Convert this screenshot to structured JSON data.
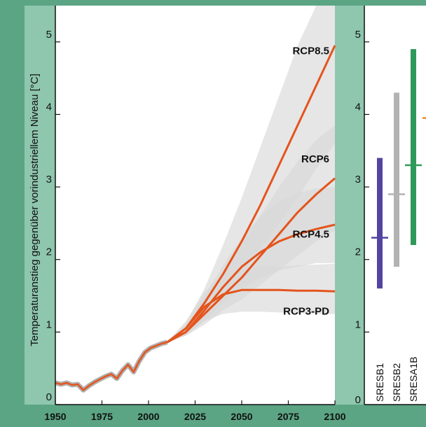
{
  "colors": {
    "page_background": "#5ba584",
    "plot_background": "#ffffff",
    "axis_band": "#8ec6ae",
    "projection_line": "#e4541c",
    "historical_band": "#b0b0b0",
    "uncertainty_band": "#d9d9d9"
  },
  "chart_data": [
    {
      "type": "line",
      "title": "",
      "ylabel": "Temperaturanstieg gegenüber vorindustriellem Niveau [°C]",
      "xlabel": "",
      "xlim": [
        1950,
        2100
      ],
      "ylim": [
        0,
        5.5
      ],
      "x_ticks": [
        "1950",
        "1975",
        "2000",
        "2025",
        "2050",
        "2075",
        "2100"
      ],
      "y_ticks": [
        "0",
        "1",
        "2",
        "3",
        "4",
        "5"
      ],
      "historical": {
        "x": [
          1950,
          1953,
          1956,
          1959,
          1962,
          1965,
          1968,
          1971,
          1974,
          1977,
          1980,
          1983,
          1986,
          1989,
          1992,
          1995,
          1998,
          2001,
          2004,
          2007,
          2010
        ],
        "y": [
          0.3,
          0.28,
          0.3,
          0.27,
          0.28,
          0.2,
          0.26,
          0.31,
          0.35,
          0.39,
          0.42,
          0.36,
          0.47,
          0.55,
          0.45,
          0.6,
          0.72,
          0.78,
          0.81,
          0.84,
          0.86
        ]
      },
      "series": [
        {
          "name": "RCP8.5",
          "x": [
            2010,
            2020,
            2030,
            2040,
            2050,
            2060,
            2070,
            2080,
            2090,
            2100
          ],
          "y": [
            0.86,
            1.05,
            1.4,
            1.8,
            2.25,
            2.75,
            3.3,
            3.85,
            4.4,
            4.95
          ],
          "band_low": [
            0.86,
            0.98,
            1.2,
            1.5,
            1.8,
            2.15,
            2.5,
            2.85,
            3.25,
            3.6
          ],
          "band_high": [
            0.86,
            1.12,
            1.6,
            2.2,
            2.85,
            3.55,
            4.25,
            4.95,
            5.5,
            5.5
          ]
        },
        {
          "name": "RCP6",
          "x": [
            2010,
            2020,
            2030,
            2040,
            2050,
            2060,
            2070,
            2080,
            2090,
            2100
          ],
          "y": [
            0.86,
            1.0,
            1.25,
            1.5,
            1.75,
            2.05,
            2.35,
            2.65,
            2.9,
            3.12
          ],
          "band_low": [
            0.86,
            0.95,
            1.1,
            1.3,
            1.45,
            1.65,
            1.85,
            2.05,
            2.25,
            2.4
          ],
          "band_high": [
            0.86,
            1.05,
            1.45,
            1.8,
            2.2,
            2.6,
            3.0,
            3.35,
            3.65,
            3.85
          ]
        },
        {
          "name": "RCP4.5",
          "x": [
            2010,
            2020,
            2030,
            2040,
            2050,
            2060,
            2070,
            2080,
            2090,
            2100
          ],
          "y": [
            0.86,
            1.0,
            1.3,
            1.62,
            1.9,
            2.1,
            2.25,
            2.35,
            2.42,
            2.48
          ],
          "band_low": [
            0.86,
            0.95,
            1.15,
            1.4,
            1.6,
            1.75,
            1.85,
            1.9,
            1.95,
            1.95
          ],
          "band_high": [
            0.86,
            1.08,
            1.5,
            1.92,
            2.3,
            2.6,
            2.8,
            2.92,
            2.98,
            3.0
          ]
        },
        {
          "name": "RCP3-PD",
          "x": [
            2010,
            2020,
            2030,
            2040,
            2050,
            2060,
            2070,
            2080,
            2090,
            2100
          ],
          "y": [
            0.86,
            1.05,
            1.35,
            1.52,
            1.58,
            1.58,
            1.58,
            1.57,
            1.57,
            1.56
          ],
          "band_low": [
            0.86,
            0.96,
            1.15,
            1.25,
            1.28,
            1.28,
            1.27,
            1.26,
            1.25,
            1.25
          ],
          "band_high": [
            0.86,
            1.15,
            1.55,
            1.8,
            1.88,
            1.9,
            1.9,
            1.92,
            1.93,
            1.94
          ]
        }
      ]
    },
    {
      "type": "range",
      "ylim": [
        0,
        5.5
      ],
      "y_ticks": [
        "1",
        "2",
        "3",
        "4",
        "5"
      ],
      "items": [
        {
          "name": "SRESB1",
          "color": "#5244a0",
          "low": 1.6,
          "high": 3.4,
          "mean": 2.3
        },
        {
          "name": "SRESB2",
          "color": "#b3b3b3",
          "low": 1.9,
          "high": 4.3,
          "mean": 2.9
        },
        {
          "name": "SRESA1B",
          "color": "#2e9a5a",
          "low": 2.2,
          "high": 4.9,
          "mean": 3.3
        }
      ],
      "partial_mark": {
        "color": "#e88a2b",
        "value": 3.95
      }
    }
  ]
}
